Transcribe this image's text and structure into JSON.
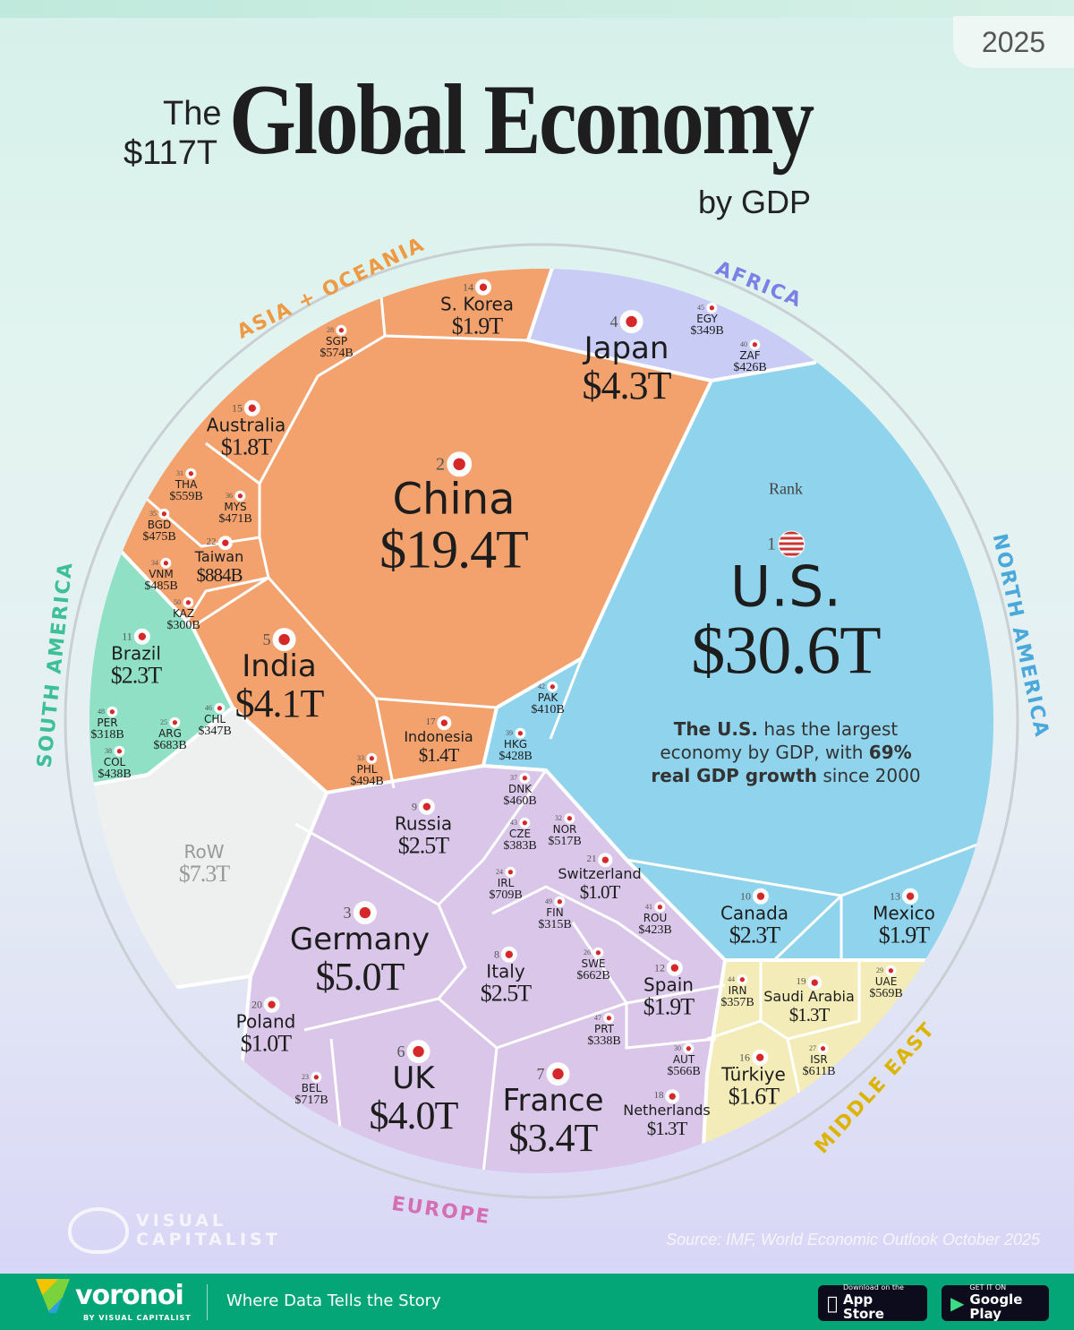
{
  "header": {
    "year": "2025",
    "the": "The",
    "total": "$117T",
    "title": "Global Economy",
    "subtitle": "by GDP"
  },
  "rank_label": "Rank",
  "note": {
    "pre": "The U.S.",
    "mid": " has the largest economy by GDP, with ",
    "bold": "69%",
    "post_bold": "real GDP growth",
    "end": " since 2000"
  },
  "regions": {
    "asia": {
      "label": "ASIA + OCEANIA",
      "color": "#f3a26e"
    },
    "africa": {
      "label": "AFRICA",
      "color": "#c9cdf6"
    },
    "north_america": {
      "label": "NORTH AMERICA",
      "color": "#8fd3ec"
    },
    "middle_east": {
      "label": "MIDDLE EAST",
      "color": "#f3ecb8"
    },
    "europe": {
      "label": "EUROPE",
      "color": "#d9c6e8"
    },
    "south_america": {
      "label": "SOUTH AMERICA",
      "color": "#8fe0c4"
    },
    "row": {
      "label": "",
      "color": "#eef0f0"
    }
  },
  "chart_data": {
    "type": "voronoi-treemap",
    "title": "The $117T Global Economy by GDP",
    "total": "$117T",
    "unit": "nominal GDP (USD)",
    "cells": [
      {
        "rank": "1",
        "name": "U.S.",
        "value": "$30.6T",
        "region": "north_america"
      },
      {
        "rank": "2",
        "name": "China",
        "value": "$19.4T",
        "region": "asia"
      },
      {
        "rank": "3",
        "name": "Germany",
        "value": "$5.0T",
        "region": "europe"
      },
      {
        "rank": "4",
        "name": "Japan",
        "value": "$4.3T",
        "region": "asia"
      },
      {
        "rank": "5",
        "name": "India",
        "value": "$4.1T",
        "region": "asia"
      },
      {
        "rank": "6",
        "name": "UK",
        "value": "$4.0T",
        "region": "europe"
      },
      {
        "rank": "7",
        "name": "France",
        "value": "$3.4T",
        "region": "europe"
      },
      {
        "rank": "8",
        "name": "Italy",
        "value": "$2.5T",
        "region": "europe"
      },
      {
        "rank": "9",
        "name": "Russia",
        "value": "$2.5T",
        "region": "europe"
      },
      {
        "rank": "10",
        "name": "Canada",
        "value": "$2.3T",
        "region": "north_america"
      },
      {
        "rank": "11",
        "name": "Brazil",
        "value": "$2.3T",
        "region": "south_america"
      },
      {
        "rank": "12",
        "name": "Spain",
        "value": "$1.9T",
        "region": "europe"
      },
      {
        "rank": "13",
        "name": "Mexico",
        "value": "$1.9T",
        "region": "north_america"
      },
      {
        "rank": "14",
        "name": "S. Korea",
        "value": "$1.9T",
        "region": "asia"
      },
      {
        "rank": "15",
        "name": "Australia",
        "value": "$1.8T",
        "region": "asia"
      },
      {
        "rank": "16",
        "name": "Türkiye",
        "value": "$1.6T",
        "region": "middle_east"
      },
      {
        "rank": "17",
        "name": "Indonesia",
        "value": "$1.4T",
        "region": "asia"
      },
      {
        "rank": "18",
        "name": "Netherlands",
        "value": "$1.3T",
        "region": "europe"
      },
      {
        "rank": "19",
        "name": "Saudi Arabia",
        "value": "$1.3T",
        "region": "middle_east"
      },
      {
        "rank": "20",
        "name": "Poland",
        "value": "$1.0T",
        "region": "europe"
      },
      {
        "rank": "21",
        "name": "Switzerland",
        "value": "$1.0T",
        "region": "europe"
      },
      {
        "rank": "22",
        "name": "Taiwan",
        "value": "$884B",
        "region": "asia"
      },
      {
        "rank": "23",
        "name": "BEL",
        "value": "$717B",
        "region": "europe"
      },
      {
        "rank": "24",
        "name": "IRL",
        "value": "$709B",
        "region": "europe"
      },
      {
        "rank": "25",
        "name": "ARG",
        "value": "$683B",
        "region": "south_america"
      },
      {
        "rank": "26",
        "name": "SWE",
        "value": "$662B",
        "region": "europe"
      },
      {
        "rank": "27",
        "name": "ISR",
        "value": "$611B",
        "region": "middle_east"
      },
      {
        "rank": "28",
        "name": "SGP",
        "value": "$574B",
        "region": "asia"
      },
      {
        "rank": "29",
        "name": "UAE",
        "value": "$569B",
        "region": "middle_east"
      },
      {
        "rank": "30",
        "name": "AUT",
        "value": "$566B",
        "region": "europe"
      },
      {
        "rank": "31",
        "name": "THA",
        "value": "$559B",
        "region": "asia"
      },
      {
        "rank": "32",
        "name": "NOR",
        "value": "$517B",
        "region": "europe"
      },
      {
        "rank": "33",
        "name": "PHL",
        "value": "$494B",
        "region": "asia"
      },
      {
        "rank": "34",
        "name": "VNM",
        "value": "$485B",
        "region": "asia"
      },
      {
        "rank": "35",
        "name": "BGD",
        "value": "$475B",
        "region": "asia"
      },
      {
        "rank": "36",
        "name": "MYS",
        "value": "$471B",
        "region": "asia"
      },
      {
        "rank": "37",
        "name": "DNK",
        "value": "$460B",
        "region": "europe"
      },
      {
        "rank": "38",
        "name": "COL",
        "value": "$438B",
        "region": "south_america"
      },
      {
        "rank": "39",
        "name": "HKG",
        "value": "$428B",
        "region": "asia"
      },
      {
        "rank": "40",
        "name": "ZAF",
        "value": "$426B",
        "region": "africa"
      },
      {
        "rank": "41",
        "name": "ROU",
        "value": "$423B",
        "region": "europe"
      },
      {
        "rank": "42",
        "name": "PAK",
        "value": "$410B",
        "region": "asia"
      },
      {
        "rank": "43",
        "name": "CZE",
        "value": "$383B",
        "region": "europe"
      },
      {
        "rank": "44",
        "name": "IRN",
        "value": "$357B",
        "region": "middle_east"
      },
      {
        "rank": "45",
        "name": "EGY",
        "value": "$349B",
        "region": "africa"
      },
      {
        "rank": "46",
        "name": "CHL",
        "value": "$347B",
        "region": "south_america"
      },
      {
        "rank": "47",
        "name": "PRT",
        "value": "$338B",
        "region": "europe"
      },
      {
        "rank": "48",
        "name": "PER",
        "value": "$318B",
        "region": "south_america"
      },
      {
        "rank": "49",
        "name": "FIN",
        "value": "$315B",
        "region": "europe"
      },
      {
        "rank": "50",
        "name": "KAZ",
        "value": "$300B",
        "region": "asia"
      },
      {
        "rank": "",
        "name": "RoW",
        "value": "$7.3T",
        "region": "row"
      }
    ]
  },
  "branding": {
    "vc_line1": "VISUAL",
    "vc_line2": "CAPITALIST",
    "source": "Source: IMF, World Economic Outlook October 2025"
  },
  "footer": {
    "brand": "voronoi",
    "brand_by": "BY VISUAL CAPITALIST",
    "tagline": "Where Data Tells the Story",
    "appstore_small": "Download on the",
    "appstore_big": "App Store",
    "gplay_small": "GET IT ON",
    "gplay_big": "Google Play"
  }
}
